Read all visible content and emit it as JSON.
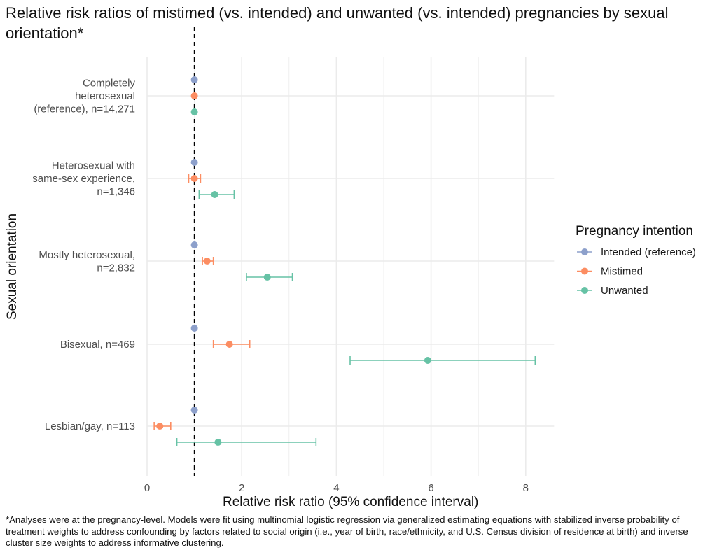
{
  "title": "Relative risk ratios of mistimed (vs. intended) and unwanted (vs. intended) pregnancies by sexual orientation*",
  "footnote": "*Analyses were at the pregnancy-level. Models were fit using multinomial logistic regression via generalized estimating equations with stabilized inverse probability of treatment weights to address confounding by factors related to social origin (i.e., year of birth, race/ethnicity, and U.S. Census division of residence at birth) and inverse cluster size weights to address informative clustering.",
  "chart_data": {
    "type": "scatter",
    "subtype": "forest-plot",
    "title": "Relative risk ratios of mistimed (vs. intended) and unwanted (vs. intended) pregnancies by sexual orientation*",
    "xlabel": "Relative risk ratio (95% confidence interval)",
    "ylabel": "Sexual orientation",
    "xlim": [
      0,
      8.6
    ],
    "xticks": [
      0,
      2,
      4,
      6,
      8
    ],
    "grid": true,
    "reference_line": 1,
    "legend_title": "Pregnancy intention",
    "legend_position": "right",
    "categories": [
      [
        "Completely",
        "heterosexual",
        "(reference), n=14,271"
      ],
      [
        "Heterosexual with",
        "same-sex experience,",
        "n=1,346"
      ],
      [
        "Mostly heterosexual,",
        "n=2,832"
      ],
      [
        "Bisexual, n=469"
      ],
      [
        "Lesbian/gay, n=113"
      ]
    ],
    "series": [
      {
        "name": "Intended (reference)",
        "color": "#8DA0CB",
        "points": [
          {
            "rr": 1.0,
            "lo": null,
            "hi": null
          },
          {
            "rr": 1.0,
            "lo": null,
            "hi": null
          },
          {
            "rr": 1.0,
            "lo": null,
            "hi": null
          },
          {
            "rr": 1.0,
            "lo": null,
            "hi": null
          },
          {
            "rr": 1.0,
            "lo": null,
            "hi": null
          }
        ]
      },
      {
        "name": "Mistimed",
        "color": "#FC8D62",
        "points": [
          {
            "rr": 1.0,
            "lo": null,
            "hi": null
          },
          {
            "rr": 1.0,
            "lo": 0.88,
            "hi": 1.13
          },
          {
            "rr": 1.27,
            "lo": 1.17,
            "hi": 1.4
          },
          {
            "rr": 1.74,
            "lo": 1.4,
            "hi": 2.17
          },
          {
            "rr": 0.27,
            "lo": 0.15,
            "hi": 0.5
          }
        ]
      },
      {
        "name": "Unwanted",
        "color": "#66C2A5",
        "points": [
          {
            "rr": 1.0,
            "lo": null,
            "hi": null
          },
          {
            "rr": 1.43,
            "lo": 1.1,
            "hi": 1.84
          },
          {
            "rr": 2.54,
            "lo": 2.1,
            "hi": 3.07
          },
          {
            "rr": 5.93,
            "lo": 4.29,
            "hi": 8.2
          },
          {
            "rr": 1.5,
            "lo": 0.63,
            "hi": 3.57
          }
        ]
      }
    ]
  }
}
